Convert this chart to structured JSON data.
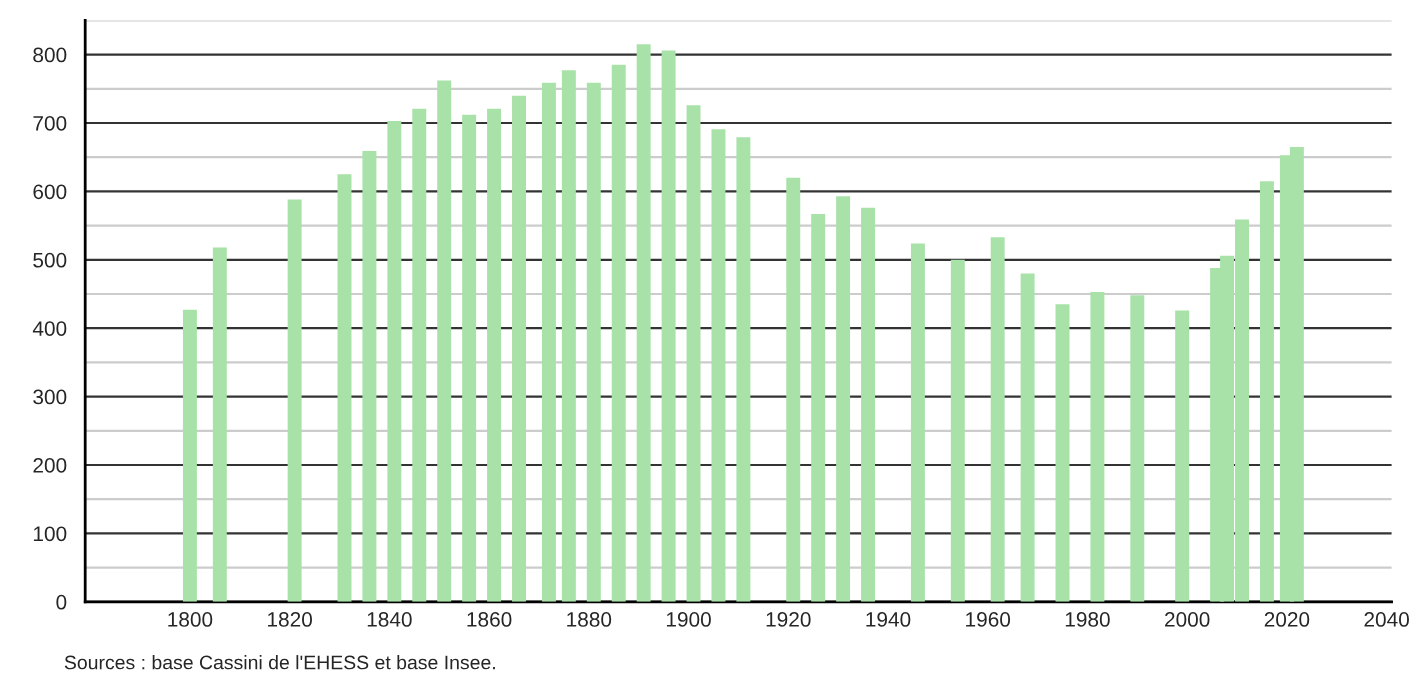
{
  "chart_data": {
    "type": "bar",
    "x": [
      1800,
      1806,
      1821,
      1831,
      1836,
      1841,
      1846,
      1851,
      1856,
      1861,
      1866,
      1872,
      1876,
      1881,
      1886,
      1891,
      1896,
      1901,
      1906,
      1911,
      1921,
      1926,
      1931,
      1936,
      1946,
      1954,
      1962,
      1968,
      1975,
      1982,
      1990,
      1999,
      2006,
      2008,
      2011,
      2016,
      2020,
      2022
    ],
    "values": [
      427,
      518,
      588,
      625,
      659,
      703,
      721,
      762,
      712,
      721,
      740,
      759,
      777,
      759,
      785,
      815,
      806,
      726,
      691,
      679,
      620,
      567,
      593,
      576,
      524,
      500,
      533,
      480,
      435,
      453,
      448,
      426,
      488,
      506,
      559,
      615,
      653,
      665
    ],
    "color": "#a8e2a8",
    "xlim": [
      1779,
      2041
    ],
    "xticks": [
      1800,
      1820,
      1840,
      1860,
      1880,
      1900,
      1920,
      1940,
      1960,
      1980,
      2000,
      2020,
      2040
    ],
    "ylim": [
      0,
      850
    ],
    "yticks": [
      0,
      {
        "value": 50,
        "label": null
      },
      100,
      {
        "value": 150,
        "label": null
      },
      200,
      {
        "value": 250,
        "label": null
      },
      300,
      {
        "value": 350,
        "label": null
      },
      400,
      {
        "value": 450,
        "label": null
      },
      500,
      {
        "value": 550,
        "label": null
      },
      600,
      {
        "value": 650,
        "label": null
      },
      700,
      {
        "value": 750,
        "label": null
      },
      800,
      {
        "value": 850,
        "label": null
      }
    ],
    "grid": "y",
    "annotations": [
      "Sources : base Cassini de l'EHESS et base Insee."
    ]
  }
}
